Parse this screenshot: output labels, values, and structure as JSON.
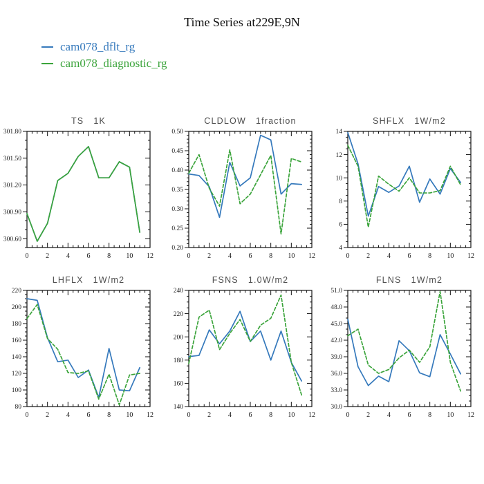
{
  "header": {
    "title": "Time Series at229E,9N",
    "legend": [
      {
        "label": "cam078_dflt_rg",
        "color": "#3579bc"
      },
      {
        "label": "cam078_diagnostic_rg",
        "color": "#3ba43b"
      }
    ]
  },
  "colors": {
    "blue": "#3579bc",
    "green": "#3ba43b",
    "axis": "#111111"
  },
  "chart_data": [
    {
      "type": "line",
      "title": "TS   1K",
      "x": [
        0,
        1,
        2,
        3,
        4,
        5,
        6,
        7,
        8,
        9,
        10,
        11
      ],
      "xlim": [
        0,
        12
      ],
      "xticks": [
        "0",
        "2",
        "4",
        "6",
        "8",
        "10",
        "12"
      ],
      "xtick_values": [
        0,
        2,
        4,
        6,
        8,
        10,
        12
      ],
      "x_minor_step": 0.5,
      "ylim": [
        300.5,
        301.8
      ],
      "yticks": [
        "300.60",
        "300.90",
        "301.20",
        "301.50",
        "301.80"
      ],
      "ytick_values": [
        300.6,
        300.9,
        301.2,
        301.5,
        301.8
      ],
      "y_minor_step": 0.1,
      "series": [
        {
          "name": "cam078_dflt_rg",
          "color": "blue",
          "dash": "none",
          "values": [
            300.88,
            300.57,
            300.77,
            301.25,
            301.33,
            301.52,
            301.63,
            301.28,
            301.28,
            301.46,
            301.4,
            300.67
          ]
        },
        {
          "name": "cam078_diagnostic_rg",
          "color": "green",
          "dash": "none",
          "values": [
            300.88,
            300.57,
            300.77,
            301.25,
            301.33,
            301.52,
            301.63,
            301.28,
            301.28,
            301.46,
            301.4,
            300.67
          ]
        }
      ]
    },
    {
      "type": "line",
      "title": "CLDLOW   1fraction",
      "x": [
        0,
        1,
        2,
        3,
        4,
        5,
        6,
        7,
        8,
        9,
        10,
        11
      ],
      "xlim": [
        0,
        12
      ],
      "xticks": [
        "0",
        "2",
        "4",
        "6",
        "8",
        "10",
        "12"
      ],
      "xtick_values": [
        0,
        2,
        4,
        6,
        8,
        10,
        12
      ],
      "x_minor_step": 0.5,
      "ylim": [
        0.2,
        0.5
      ],
      "yticks": [
        "0.20",
        "0.25",
        "0.30",
        "0.35",
        "0.40",
        "0.45",
        "0.50"
      ],
      "ytick_values": [
        0.2,
        0.25,
        0.3,
        0.35,
        0.4,
        0.45,
        0.5
      ],
      "y_minor_step": 0.01,
      "series": [
        {
          "name": "cam078_dflt_rg",
          "color": "blue",
          "dash": "none",
          "values": [
            0.39,
            0.386,
            0.357,
            0.278,
            0.42,
            0.359,
            0.38,
            0.49,
            0.478,
            0.338,
            0.365,
            0.363
          ]
        },
        {
          "name": "cam078_diagnostic_rg",
          "color": "green",
          "dash": "dashed",
          "values": [
            0.392,
            0.44,
            0.353,
            0.307,
            0.452,
            0.313,
            0.338,
            0.388,
            0.438,
            0.235,
            0.43,
            0.421
          ]
        }
      ]
    },
    {
      "type": "line",
      "title": "SHFLX   1W/m2",
      "x": [
        0,
        1,
        2,
        3,
        4,
        5,
        6,
        7,
        8,
        9,
        10,
        11
      ],
      "xlim": [
        0,
        12
      ],
      "xticks": [
        "0",
        "2",
        "4",
        "6",
        "8",
        "10",
        "12"
      ],
      "xtick_values": [
        0,
        2,
        4,
        6,
        8,
        10,
        12
      ],
      "x_minor_step": 0.5,
      "ylim": [
        4,
        14
      ],
      "yticks": [
        "4",
        "6",
        "8",
        "10",
        "12",
        "14"
      ],
      "ytick_values": [
        4,
        6,
        8,
        10,
        12,
        14
      ],
      "y_minor_step": 0.5,
      "series": [
        {
          "name": "cam078_dflt_rg",
          "color": "blue",
          "dash": "none",
          "values": [
            13.9,
            11.2,
            6.7,
            9.25,
            8.75,
            9.3,
            11.0,
            7.9,
            9.9,
            8.6,
            10.8,
            9.6
          ]
        },
        {
          "name": "cam078_diagnostic_rg",
          "color": "green",
          "dash": "dashed",
          "values": [
            12.8,
            11.0,
            5.75,
            10.15,
            9.45,
            8.85,
            10.0,
            8.7,
            8.7,
            8.9,
            11.0,
            9.4
          ]
        }
      ]
    },
    {
      "type": "line",
      "title": "LHFLX   1W/m2",
      "x": [
        0,
        1,
        2,
        3,
        4,
        5,
        6,
        7,
        8,
        9,
        10,
        11
      ],
      "xlim": [
        0,
        12
      ],
      "xticks": [
        "0",
        "2",
        "4",
        "6",
        "8",
        "10",
        "12"
      ],
      "xtick_values": [
        0,
        2,
        4,
        6,
        8,
        10,
        12
      ],
      "x_minor_step": 0.5,
      "ylim": [
        80,
        220
      ],
      "yticks": [
        "80",
        "100",
        "120",
        "140",
        "160",
        "180",
        "200",
        "220"
      ],
      "ytick_values": [
        80,
        100,
        120,
        140,
        160,
        180,
        200,
        220
      ],
      "y_minor_step": 5,
      "series": [
        {
          "name": "cam078_dflt_rg",
          "color": "blue",
          "dash": "none",
          "values": [
            210,
            208,
            163,
            134,
            136,
            115,
            124,
            91,
            150,
            100,
            99,
            127
          ]
        },
        {
          "name": "cam078_diagnostic_rg",
          "color": "green",
          "dash": "dashed",
          "values": [
            186,
            203,
            162,
            149,
            121,
            120,
            123,
            89,
            119,
            82,
            118,
            120
          ]
        }
      ]
    },
    {
      "type": "line",
      "title": "FSNS   1.0W/m2",
      "x": [
        0,
        1,
        2,
        3,
        4,
        5,
        6,
        7,
        8,
        9,
        10,
        11
      ],
      "xlim": [
        0,
        12
      ],
      "xticks": [
        "0",
        "2",
        "4",
        "6",
        "8",
        "10",
        "12"
      ],
      "xtick_values": [
        0,
        2,
        4,
        6,
        8,
        10,
        12
      ],
      "x_minor_step": 0.5,
      "ylim": [
        140,
        240
      ],
      "yticks": [
        "140",
        "160",
        "180",
        "200",
        "220",
        "240"
      ],
      "ytick_values": [
        140,
        160,
        180,
        200,
        220,
        240
      ],
      "y_minor_step": 5,
      "series": [
        {
          "name": "cam078_dflt_rg",
          "color": "blue",
          "dash": "none",
          "values": [
            183,
            184,
            206,
            194,
            205,
            222,
            196,
            205,
            180,
            205,
            178,
            162
          ]
        },
        {
          "name": "cam078_diagnostic_rg",
          "color": "green",
          "dash": "dashed",
          "values": [
            177,
            217,
            223,
            189,
            203,
            215,
            196,
            210,
            216,
            236,
            178,
            150
          ]
        }
      ]
    },
    {
      "type": "line",
      "title": "FLNS   1W/m2",
      "x": [
        0,
        1,
        2,
        3,
        4,
        5,
        6,
        7,
        8,
        9,
        10,
        11
      ],
      "xlim": [
        0,
        12
      ],
      "xticks": [
        "0",
        "2",
        "4",
        "6",
        "8",
        "10",
        "12"
      ],
      "xtick_values": [
        0,
        2,
        4,
        6,
        8,
        10,
        12
      ],
      "x_minor_step": 0.5,
      "ylim": [
        30.0,
        51.0
      ],
      "yticks": [
        "30.0",
        "33.0",
        "36.0",
        "39.0",
        "42.0",
        "45.0",
        "48.0",
        "51.0"
      ],
      "ytick_values": [
        30,
        33,
        36,
        39,
        42,
        45,
        48,
        51
      ],
      "y_minor_step": 1,
      "series": [
        {
          "name": "cam078_dflt_rg",
          "color": "blue",
          "dash": "none",
          "values": [
            45.8,
            37.2,
            33.8,
            35.5,
            34.5,
            41.9,
            40.1,
            36.1,
            35.4,
            43.0,
            39.5,
            35.9
          ]
        },
        {
          "name": "cam078_diagnostic_rg",
          "color": "green",
          "dash": "dashed",
          "values": [
            42.8,
            44.0,
            37.5,
            36.0,
            36.7,
            38.8,
            40.2,
            38.0,
            40.8,
            50.8,
            38.0,
            32.8
          ]
        }
      ]
    }
  ]
}
